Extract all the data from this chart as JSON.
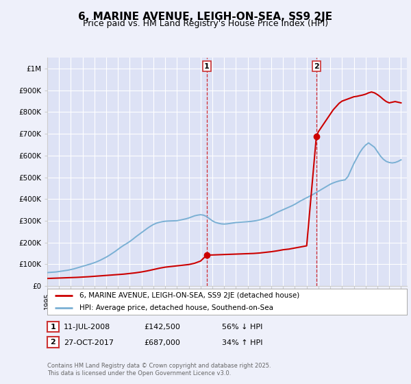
{
  "title": "6, MARINE AVENUE, LEIGH-ON-SEA, SS9 2JE",
  "subtitle": "Price paid vs. HM Land Registry's House Price Index (HPI)",
  "title_fontsize": 11,
  "subtitle_fontsize": 9,
  "background_color": "#eef0fa",
  "plot_bg_color": "#dde2f5",
  "ylabel_ticks": [
    "£0",
    "£100K",
    "£200K",
    "£300K",
    "£400K",
    "£500K",
    "£600K",
    "£700K",
    "£800K",
    "£900K",
    "£1M"
  ],
  "ytick_values": [
    0,
    100000,
    200000,
    300000,
    400000,
    500000,
    600000,
    700000,
    800000,
    900000,
    1000000
  ],
  "ylim": [
    0,
    1050000
  ],
  "xlim_start": 1995,
  "xlim_end": 2025.5,
  "xtick_years": [
    1995,
    1996,
    1997,
    1998,
    1999,
    2000,
    2001,
    2002,
    2003,
    2004,
    2005,
    2006,
    2007,
    2008,
    2009,
    2010,
    2011,
    2012,
    2013,
    2014,
    2015,
    2016,
    2017,
    2018,
    2019,
    2020,
    2021,
    2022,
    2023,
    2024,
    2025
  ],
  "vline1_x": 2008.53,
  "vline2_x": 2017.82,
  "sale1_label": "1",
  "sale1_date": "11-JUL-2008",
  "sale1_price": "£142,500",
  "sale1_hpi": "56% ↓ HPI",
  "sale1_x": 2008.53,
  "sale1_y": 142500,
  "sale2_label": "2",
  "sale2_date": "27-OCT-2017",
  "sale2_price": "£687,000",
  "sale2_hpi": "34% ↑ HPI",
  "sale2_x": 2017.82,
  "sale2_y": 687000,
  "legend_label_red": "6, MARINE AVENUE, LEIGH-ON-SEA, SS9 2JE (detached house)",
  "legend_label_blue": "HPI: Average price, detached house, Southend-on-Sea",
  "footer": "Contains HM Land Registry data © Crown copyright and database right 2025.\nThis data is licensed under the Open Government Licence v3.0.",
  "red_color": "#cc0000",
  "blue_color": "#7ab0d4",
  "grid_color": "#ffffff",
  "hpi_years": [
    1995,
    1995.25,
    1995.5,
    1995.75,
    1996,
    1996.25,
    1996.5,
    1996.75,
    1997,
    1997.25,
    1997.5,
    1997.75,
    1998,
    1998.25,
    1998.5,
    1998.75,
    1999,
    1999.25,
    1999.5,
    1999.75,
    2000,
    2000.25,
    2000.5,
    2000.75,
    2001,
    2001.25,
    2001.5,
    2001.75,
    2002,
    2002.25,
    2002.5,
    2002.75,
    2003,
    2003.25,
    2003.5,
    2003.75,
    2004,
    2004.25,
    2004.5,
    2004.75,
    2005,
    2005.25,
    2005.5,
    2005.75,
    2006,
    2006.25,
    2006.5,
    2006.75,
    2007,
    2007.25,
    2007.5,
    2007.75,
    2008,
    2008.25,
    2008.5,
    2008.75,
    2009,
    2009.25,
    2009.5,
    2009.75,
    2010,
    2010.25,
    2010.5,
    2010.75,
    2011,
    2011.25,
    2011.5,
    2011.75,
    2012,
    2012.25,
    2012.5,
    2012.75,
    2013,
    2013.25,
    2013.5,
    2013.75,
    2014,
    2014.25,
    2014.5,
    2014.75,
    2015,
    2015.25,
    2015.5,
    2015.75,
    2016,
    2016.25,
    2016.5,
    2016.75,
    2017,
    2017.25,
    2017.5,
    2017.75,
    2018,
    2018.25,
    2018.5,
    2018.75,
    2019,
    2019.25,
    2019.5,
    2019.75,
    2020,
    2020.25,
    2020.5,
    2020.75,
    2021,
    2021.25,
    2021.5,
    2021.75,
    2022,
    2022.25,
    2022.5,
    2022.75,
    2023,
    2023.25,
    2023.5,
    2023.75,
    2024,
    2024.25,
    2024.5,
    2024.75,
    2025
  ],
  "hpi_values": [
    62000,
    63000,
    64000,
    65000,
    67000,
    69000,
    71000,
    73000,
    76000,
    79000,
    83000,
    87000,
    91000,
    95000,
    99000,
    103000,
    107500,
    113000,
    119000,
    126000,
    133000,
    141000,
    150000,
    159000,
    169000,
    179000,
    188000,
    196000,
    205000,
    215000,
    226000,
    236000,
    246000,
    256000,
    266000,
    275000,
    283000,
    289000,
    293000,
    296000,
    298000,
    299000,
    299500,
    300000,
    300500,
    303000,
    306000,
    309000,
    313000,
    318000,
    323000,
    326000,
    328000,
    326000,
    320000,
    310000,
    300000,
    293000,
    289000,
    286000,
    285000,
    286000,
    288000,
    290000,
    292000,
    293000,
    294000,
    295000,
    296000,
    297000,
    299000,
    301000,
    304000,
    308000,
    313000,
    318000,
    325000,
    332000,
    339000,
    345000,
    351000,
    357000,
    363000,
    369000,
    376000,
    384000,
    392000,
    399000,
    406000,
    413000,
    420000,
    428000,
    436000,
    444000,
    452000,
    460000,
    468000,
    474000,
    479000,
    483000,
    486000,
    488000,
    503000,
    533000,
    563000,
    588000,
    613000,
    633000,
    648000,
    658000,
    648000,
    638000,
    618000,
    598000,
    583000,
    573000,
    568000,
    566000,
    568000,
    573000,
    580000
  ],
  "red_pre_x": [
    1995.0,
    1995.5,
    1996.0,
    1996.5,
    1997.0,
    1997.5,
    1998.0,
    1998.5,
    1999.0,
    1999.5,
    2000.0,
    2000.5,
    2001.0,
    2001.5,
    2002.0,
    2002.5,
    2003.0,
    2003.5,
    2004.0,
    2004.5,
    2005.0,
    2005.5,
    2006.0,
    2006.5,
    2007.0,
    2007.5,
    2008.0,
    2008.53
  ],
  "red_pre_y": [
    35000,
    36000,
    37000,
    38000,
    39000,
    40000,
    41500,
    43000,
    45000,
    47000,
    49000,
    51000,
    53000,
    55000,
    58000,
    61000,
    65000,
    70000,
    76000,
    82000,
    87000,
    90000,
    93000,
    96000,
    99000,
    105000,
    115000,
    142500
  ],
  "red_mid_x": [
    2008.53,
    2009.0,
    2009.5,
    2010.0,
    2010.5,
    2011.0,
    2011.5,
    2012.0,
    2012.5,
    2013.0,
    2013.5,
    2014.0,
    2014.5,
    2015.0,
    2015.5,
    2016.0,
    2016.5,
    2017.0,
    2017.82
  ],
  "red_mid_y": [
    142500,
    143000,
    144000,
    145000,
    146000,
    147000,
    148000,
    149000,
    150000,
    152000,
    155000,
    158000,
    162000,
    167000,
    170000,
    175000,
    180000,
    185000,
    687000
  ],
  "red_post_x": [
    2017.82,
    2018.0,
    2018.25,
    2018.5,
    2018.75,
    2019.0,
    2019.25,
    2019.5,
    2019.75,
    2020.0,
    2020.25,
    2020.5,
    2020.75,
    2021.0,
    2021.25,
    2021.5,
    2021.75,
    2022.0,
    2022.25,
    2022.5,
    2022.75,
    2023.0,
    2023.25,
    2023.5,
    2023.75,
    2024.0,
    2024.25,
    2024.5,
    2024.75,
    2025.0
  ],
  "red_post_y": [
    687000,
    710000,
    730000,
    750000,
    770000,
    790000,
    810000,
    825000,
    840000,
    850000,
    855000,
    860000,
    865000,
    870000,
    872000,
    875000,
    878000,
    882000,
    888000,
    892000,
    888000,
    880000,
    870000,
    858000,
    848000,
    842000,
    845000,
    848000,
    845000,
    842000
  ]
}
